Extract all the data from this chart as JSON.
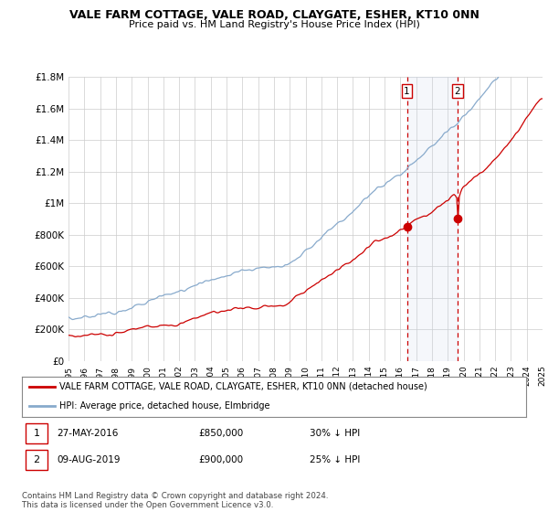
{
  "title": "VALE FARM COTTAGE, VALE ROAD, CLAYGATE, ESHER, KT10 0NN",
  "subtitle": "Price paid vs. HM Land Registry's House Price Index (HPI)",
  "legend_line1": "VALE FARM COTTAGE, VALE ROAD, CLAYGATE, ESHER, KT10 0NN (detached house)",
  "legend_line2": "HPI: Average price, detached house, Elmbridge",
  "annotation1_label": "1",
  "annotation1_date": "27-MAY-2016",
  "annotation1_price": "£850,000",
  "annotation1_hpi": "30% ↓ HPI",
  "annotation2_label": "2",
  "annotation2_date": "09-AUG-2019",
  "annotation2_price": "£900,000",
  "annotation2_hpi": "25% ↓ HPI",
  "footnote": "Contains HM Land Registry data © Crown copyright and database right 2024.\nThis data is licensed under the Open Government Licence v3.0.",
  "red_color": "#cc0000",
  "blue_color": "#88aacc",
  "blue_fill_color": "#c8d8ee",
  "vline_color": "#cc0000",
  "marker_box_color": "#cc0000",
  "ylim": [
    0,
    1800000
  ],
  "yticks": [
    0,
    200000,
    400000,
    600000,
    800000,
    1000000,
    1200000,
    1400000,
    1600000,
    1800000
  ],
  "ytick_labels": [
    "£0",
    "£200K",
    "£400K",
    "£600K",
    "£800K",
    "£1M",
    "£1.2M",
    "£1.4M",
    "£1.6M",
    "£1.8M"
  ],
  "sale1_year": 2016.42,
  "sale1_value": 850000,
  "sale2_year": 2019.62,
  "sale2_value": 900000,
  "xlim_start": 1995,
  "xlim_end": 2025,
  "xtick_years": [
    1995,
    1996,
    1997,
    1998,
    1999,
    2000,
    2001,
    2002,
    2003,
    2004,
    2005,
    2006,
    2007,
    2008,
    2009,
    2010,
    2011,
    2012,
    2013,
    2014,
    2015,
    2016,
    2017,
    2018,
    2019,
    2020,
    2021,
    2022,
    2023,
    2024,
    2025
  ]
}
